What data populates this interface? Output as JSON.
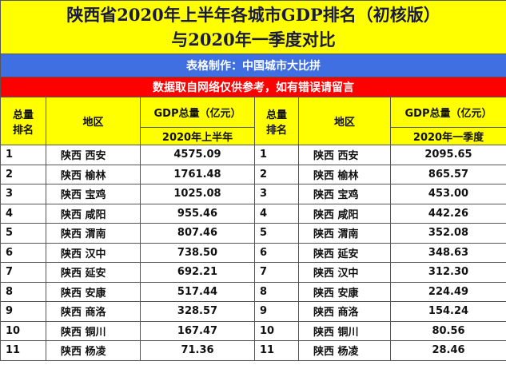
{
  "header": {
    "title_line1": "陕西省2020年上半年各城市GDP排名（初核版）",
    "title_line2": "与2020年一季度对比"
  },
  "credit": "表格制作：中国城市大比拼",
  "notice": "数据取自网络仅供参考，如有错误请留言",
  "left_table": {
    "rank_header": [
      "总量",
      "排名"
    ],
    "region_header": "地区",
    "value_header": "GDP总量（亿元）",
    "period": "2020年上半年",
    "rows": [
      [
        "1",
        "陕西 西安",
        "4575.09"
      ],
      [
        "2",
        "陕西 榆林",
        "1761.48"
      ],
      [
        "3",
        "陕西 宝鸡",
        "1025.08"
      ],
      [
        "4",
        "陕西 咸阳",
        "955.46"
      ],
      [
        "5",
        "陕西 渭南",
        "807.46"
      ],
      [
        "6",
        "陕西 汉中",
        "738.50"
      ],
      [
        "7",
        "陕西 延安",
        "692.21"
      ],
      [
        "8",
        "陕西 安康",
        "517.44"
      ],
      [
        "9",
        "陕西 商洛",
        "328.57"
      ],
      [
        "10",
        "陕西 铜川",
        "167.47"
      ],
      [
        "11",
        "陕西 杨凌",
        "71.36"
      ]
    ]
  },
  "right_table": {
    "rank_header": [
      "总量",
      "排名"
    ],
    "region_header": "地区",
    "value_header": "GDP总量（亿元）",
    "period": "2020年一季度",
    "rows": [
      [
        "1",
        "陕西 西安",
        "2095.65"
      ],
      [
        "2",
        "陕西 榆林",
        "865.57"
      ],
      [
        "3",
        "陕西 宝鸡",
        "453.00"
      ],
      [
        "4",
        "陕西 咸阳",
        "442.26"
      ],
      [
        "5",
        "陕西 渭南",
        "352.08"
      ],
      [
        "6",
        "陕西 延安",
        "348.63"
      ],
      [
        "7",
        "陕西 汉中",
        "312.30"
      ],
      [
        "8",
        "陕西 安康",
        "224.49"
      ],
      [
        "9",
        "陕西 商洛",
        "154.24"
      ],
      [
        "10",
        "陕西 铜川",
        "80.56"
      ],
      [
        "11",
        "陕西 杨凌",
        "28.46"
      ]
    ]
  }
}
